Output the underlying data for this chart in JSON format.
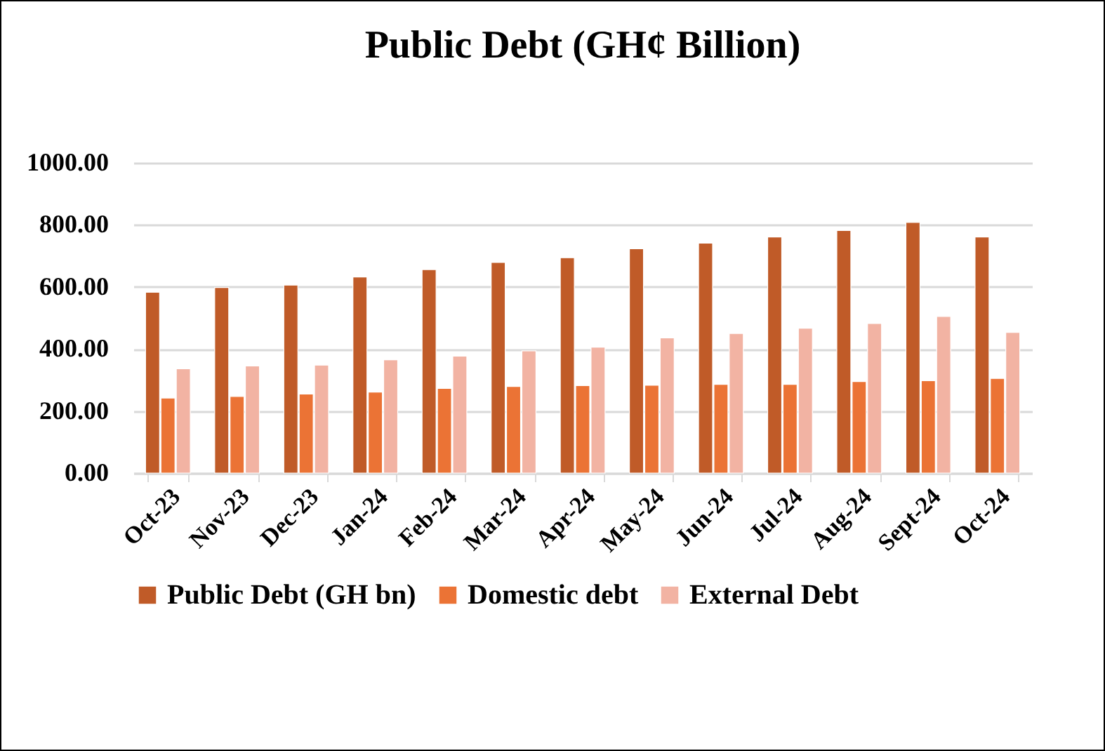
{
  "chart_data": {
    "type": "bar",
    "title": "Public Debt (GH¢ Billion)",
    "categories": [
      "Oct-23",
      "Nov-23",
      "Dec-23",
      "Jan-24",
      "Feb-24",
      "Mar-24",
      "Apr-24",
      "May-24",
      "Jun-24",
      "Jul-24",
      "Aug-24",
      "Sept-24",
      "Oct-24"
    ],
    "series": [
      {
        "name": "Public Debt (GH bn)",
        "color": "#c05b28",
        "values": [
          583,
          598,
          606,
          632,
          656,
          679,
          694,
          723,
          741,
          761,
          782,
          808,
          761
        ]
      },
      {
        "name": "Domestic debt",
        "color": "#eb7335",
        "values": [
          242,
          247,
          255,
          261,
          273,
          279,
          282,
          283,
          286,
          286,
          295,
          298,
          305
        ]
      },
      {
        "name": "External Debt",
        "color": "#f2b3a3",
        "values": [
          336,
          345,
          348,
          365,
          377,
          394,
          406,
          436,
          450,
          467,
          482,
          505,
          453
        ]
      }
    ],
    "ylim": [
      0,
      1000
    ],
    "yticks": [
      {
        "value": 0,
        "label": "0.00"
      },
      {
        "value": 200,
        "label": "200.00"
      },
      {
        "value": 400,
        "label": "400.00"
      },
      {
        "value": 600,
        "label": "600.00"
      },
      {
        "value": 800,
        "label": "800.00"
      },
      {
        "value": 1000,
        "label": "1000.00"
      }
    ],
    "grid": "y",
    "legend": "bottom"
  }
}
